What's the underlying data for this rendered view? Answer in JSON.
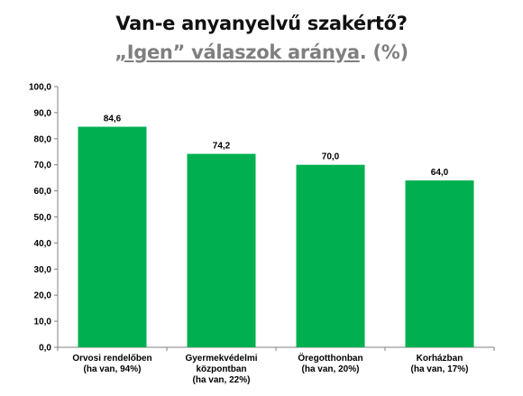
{
  "title": "Van-e anyanyelvű szakértő?",
  "subtitle_underlined": "„Igen” válaszok aránya",
  "subtitle_rest": ". (%)",
  "colors": {
    "bar": "#00b050",
    "axis": "#808080"
  },
  "chart_data": {
    "type": "bar",
    "title": "Van-e anyanyelvű szakértő?",
    "subtitle": "„Igen” válaszok aránya. (%)",
    "categories": [
      [
        "Orvosi rendelőben",
        "(ha van, 94%)"
      ],
      [
        "Gyermekvédelmi",
        "központban",
        "(ha van, 22%)"
      ],
      [
        "Öregotthonban",
        "(ha van, 20%)"
      ],
      [
        "Korházban",
        "(ha van, 17%)"
      ]
    ],
    "values": [
      84.6,
      74.2,
      70.0,
      64.0
    ],
    "data_labels": [
      "84,6",
      "74,2",
      "70,0",
      "64,0"
    ],
    "ylim": [
      0,
      100
    ],
    "yticks": [
      0,
      10,
      20,
      30,
      40,
      50,
      60,
      70,
      80,
      90,
      100
    ],
    "ytick_labels": [
      "0,0",
      "10,0",
      "20,0",
      "30,0",
      "40,0",
      "50,0",
      "60,0",
      "70,0",
      "80,0",
      "90,0",
      "100,0"
    ],
    "grid": false,
    "legend": "none"
  }
}
